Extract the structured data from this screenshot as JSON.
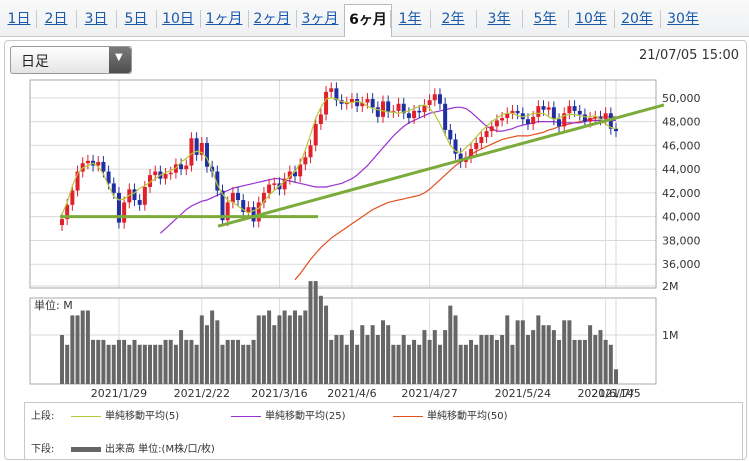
{
  "tabs": [
    "1日",
    "2日",
    "3日",
    "5日",
    "10日",
    "1ヶ月",
    "2ヶ月",
    "3ヶ月",
    "6ヶ月",
    "1年",
    "2年",
    "3年",
    "5年",
    "10年",
    "20年",
    "30年"
  ],
  "active_tab": "6ヶ月",
  "period_select": {
    "value": "日足"
  },
  "timestamp": "21/07/05 15:00",
  "colors": {
    "ma5": "#b7c93a",
    "ma25": "#9b30d0",
    "ma50": "#e05020",
    "up": "#e0202a",
    "down": "#2030a0",
    "trend": "#7aab3b",
    "volume": "#666666"
  },
  "chart_data": [
    {
      "type": "candlestick",
      "y_ticks": [
        "36,000",
        "38,000",
        "40,000",
        "42,000",
        "44,000",
        "46,000",
        "48,000",
        "50,000"
      ],
      "ylim": [
        34000,
        51500
      ],
      "x_labels": [
        "2021/1/29",
        "2021/2/22",
        "2021/3/16",
        "2021/4/6",
        "2021/4/27",
        "2021/5/24",
        "2021/6/14",
        "2021/7/5"
      ],
      "close_trading_days": [
        39800,
        41000,
        42200,
        43800,
        44500,
        44700,
        44300,
        44600,
        43800,
        42800,
        42000,
        39500,
        41200,
        42300,
        41400,
        41000,
        42500,
        43500,
        43800,
        43200,
        43600,
        43700,
        44400,
        44000,
        44300,
        46600,
        45200,
        46200,
        44200,
        43800,
        42200,
        39700,
        41200,
        42000,
        41400,
        40400,
        40800,
        39600,
        41200,
        42000,
        42700,
        42800,
        42300,
        43200,
        43800,
        43400,
        44400,
        45000,
        46000,
        47800,
        48600,
        50500,
        50800,
        49800,
        49500,
        49600,
        49900,
        49300,
        49600,
        49900,
        49200,
        48400,
        49700,
        48800,
        48900,
        49500,
        48700,
        48300,
        48900,
        48800,
        49400,
        49800,
        50300,
        49500,
        47300,
        46500,
        45300,
        44600,
        45000,
        45700,
        46200,
        46700,
        47200,
        47600,
        48100,
        48300,
        48700,
        48900,
        48700,
        48200,
        47800,
        48400,
        49300,
        49000,
        49200,
        48200,
        47600,
        48700,
        49300,
        48900,
        48600,
        48000,
        48300,
        48400,
        48200,
        48700,
        47400,
        47200
      ],
      "ma5_trading_days": [
        40200,
        41200,
        42600,
        43600,
        44100,
        44300,
        44500,
        44200,
        43600,
        42600,
        41700,
        41400,
        41500,
        41800,
        42000,
        42400,
        42600,
        42900,
        43200,
        43500,
        43700,
        43900,
        44100,
        44600,
        44900,
        45300,
        45500,
        45400,
        44900,
        43900,
        42700,
        41900,
        41400,
        41200,
        40900,
        40600,
        40300,
        40500,
        40700,
        41300,
        41800,
        42200,
        42600,
        43000,
        43400,
        43800,
        44500,
        45600,
        46900,
        48300,
        49200,
        49900,
        50000,
        49900,
        49700,
        49600,
        49600,
        49700,
        49600,
        49300,
        49100,
        49000,
        48900,
        48800,
        48800,
        48700,
        48800,
        48900,
        49100,
        49300,
        49400,
        49100,
        48600,
        47800,
        46900,
        46000,
        45500,
        45400,
        45800,
        46200,
        46700,
        47200,
        47600,
        48000,
        48300,
        48600,
        48700,
        48700,
        48500,
        48400,
        48500,
        48700,
        48700,
        48700,
        48400,
        48200,
        48300,
        48500,
        48600,
        48600,
        48500,
        48400,
        48400,
        48500,
        48200,
        47800,
        47500,
        47400
      ],
      "ma25_trading_days": [
        38600,
        39000,
        39400,
        39800,
        40200,
        40600,
        40900,
        41100,
        41300,
        41400,
        41600,
        41800,
        42000,
        42200,
        42400,
        42500,
        42600,
        42700,
        42800,
        42900,
        43000,
        43100,
        43200,
        43200,
        43100,
        43000,
        42900,
        42800,
        42700,
        42600,
        42500,
        42500,
        42500,
        42600,
        42700,
        42800,
        43000,
        43200,
        43500,
        43900,
        44300,
        44800,
        45300,
        45800,
        46300,
        46800,
        47200,
        47600,
        47900,
        48100,
        48300,
        48500,
        48700,
        48800,
        48900,
        49000,
        49100,
        49200,
        49200,
        49100,
        48800,
        48400,
        48000,
        47600,
        47400,
        47200,
        47200,
        47300,
        47400,
        47600,
        47700,
        47800,
        47900,
        48000,
        48000,
        48000,
        48000,
        47900,
        47900,
        47900,
        47900,
        47900,
        48000,
        48100,
        48100,
        48100,
        48100,
        48100,
        48100
      ],
      "ma50_trading_days": [
        34700,
        35200,
        35800,
        36400,
        36900,
        37400,
        37800,
        38200,
        38500,
        38800,
        39100,
        39400,
        39700,
        40000,
        40300,
        40600,
        40800,
        41000,
        41200,
        41300,
        41400,
        41500,
        41600,
        41700,
        41800,
        42000,
        42300,
        42700,
        43100,
        43500,
        43900,
        44300,
        44600,
        44900,
        45200,
        45500,
        45700,
        45900,
        46100,
        46300,
        46500,
        46600,
        46700,
        46800,
        46800,
        46800,
        46900,
        47000,
        47100,
        47300,
        47400,
        47600,
        47700,
        47800,
        47900,
        48000,
        48100,
        48200,
        48300,
        48400,
        48400,
        48400,
        48400
      ],
      "trend_lines": [
        {
          "y_start": 40000,
          "y_end": 40000
        },
        {
          "y_start": 39200,
          "y_end": 49400
        }
      ]
    },
    {
      "type": "bar",
      "title": "単位: M",
      "y_ticks": [
        "2M",
        "1M"
      ],
      "ylim": [
        0,
        2
      ],
      "values_millions_trading_days": [
        1.0,
        0.8,
        1.4,
        1.4,
        1.5,
        1.5,
        0.9,
        0.9,
        0.9,
        0.8,
        0.8,
        0.9,
        0.9,
        0.8,
        0.9,
        0.8,
        0.8,
        0.8,
        0.8,
        0.8,
        0.9,
        0.9,
        0.8,
        1.1,
        0.9,
        0.9,
        0.8,
        1.4,
        1.2,
        1.5,
        1.3,
        0.8,
        0.9,
        0.9,
        0.9,
        0.8,
        0.8,
        0.9,
        1.4,
        1.4,
        1.5,
        1.2,
        1.4,
        1.5,
        1.4,
        1.5,
        1.4,
        1.5,
        2.1,
        2.1,
        1.8,
        1.6,
        0.9,
        1.0,
        1.0,
        0.8,
        1.1,
        0.8,
        1.2,
        1.0,
        1.2,
        1.0,
        1.3,
        1.2,
        0.8,
        0.8,
        1.0,
        0.8,
        0.9,
        0.8,
        1.1,
        0.9,
        1.1,
        0.8,
        1.1,
        1.6,
        1.4,
        0.8,
        0.8,
        0.9,
        0.8,
        1.0,
        1.0,
        1.0,
        0.9,
        1.0,
        1.4,
        0.8,
        1.3,
        1.3,
        1.0,
        1.1,
        1.4,
        1.2,
        1.2,
        1.1,
        0.9,
        1.3,
        1.3,
        0.9,
        0.9,
        0.9,
        1.2,
        1.0,
        1.1,
        0.9,
        0.8,
        0.3
      ]
    }
  ],
  "legend": {
    "upper_label": "上段:",
    "ma5": "単純移動平均(5)",
    "ma25": "単純移動平均(25)",
    "ma50": "単純移動平均(50)",
    "lower_label": "下段:",
    "volume": "出来高 単位:(M株/口/枚)"
  }
}
